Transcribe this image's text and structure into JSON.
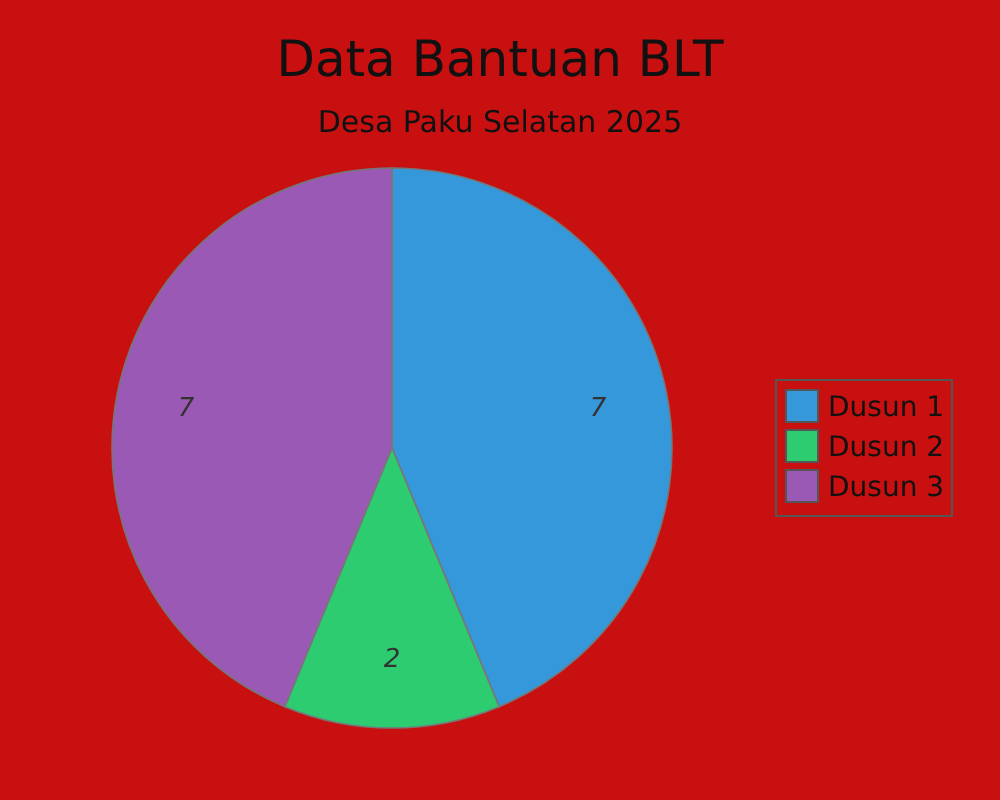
{
  "chart_data": {
    "type": "pie",
    "title": "Data Bantuan BLT",
    "subtitle": "Desa Paku Selatan 2025",
    "categories": [
      "Dusun 1",
      "Dusun 2",
      "Dusun 3"
    ],
    "values": [
      7,
      2,
      7
    ],
    "colors": [
      "#3498db",
      "#2ecc71",
      "#9b59b6"
    ],
    "data_labels": true,
    "legend": "right"
  }
}
